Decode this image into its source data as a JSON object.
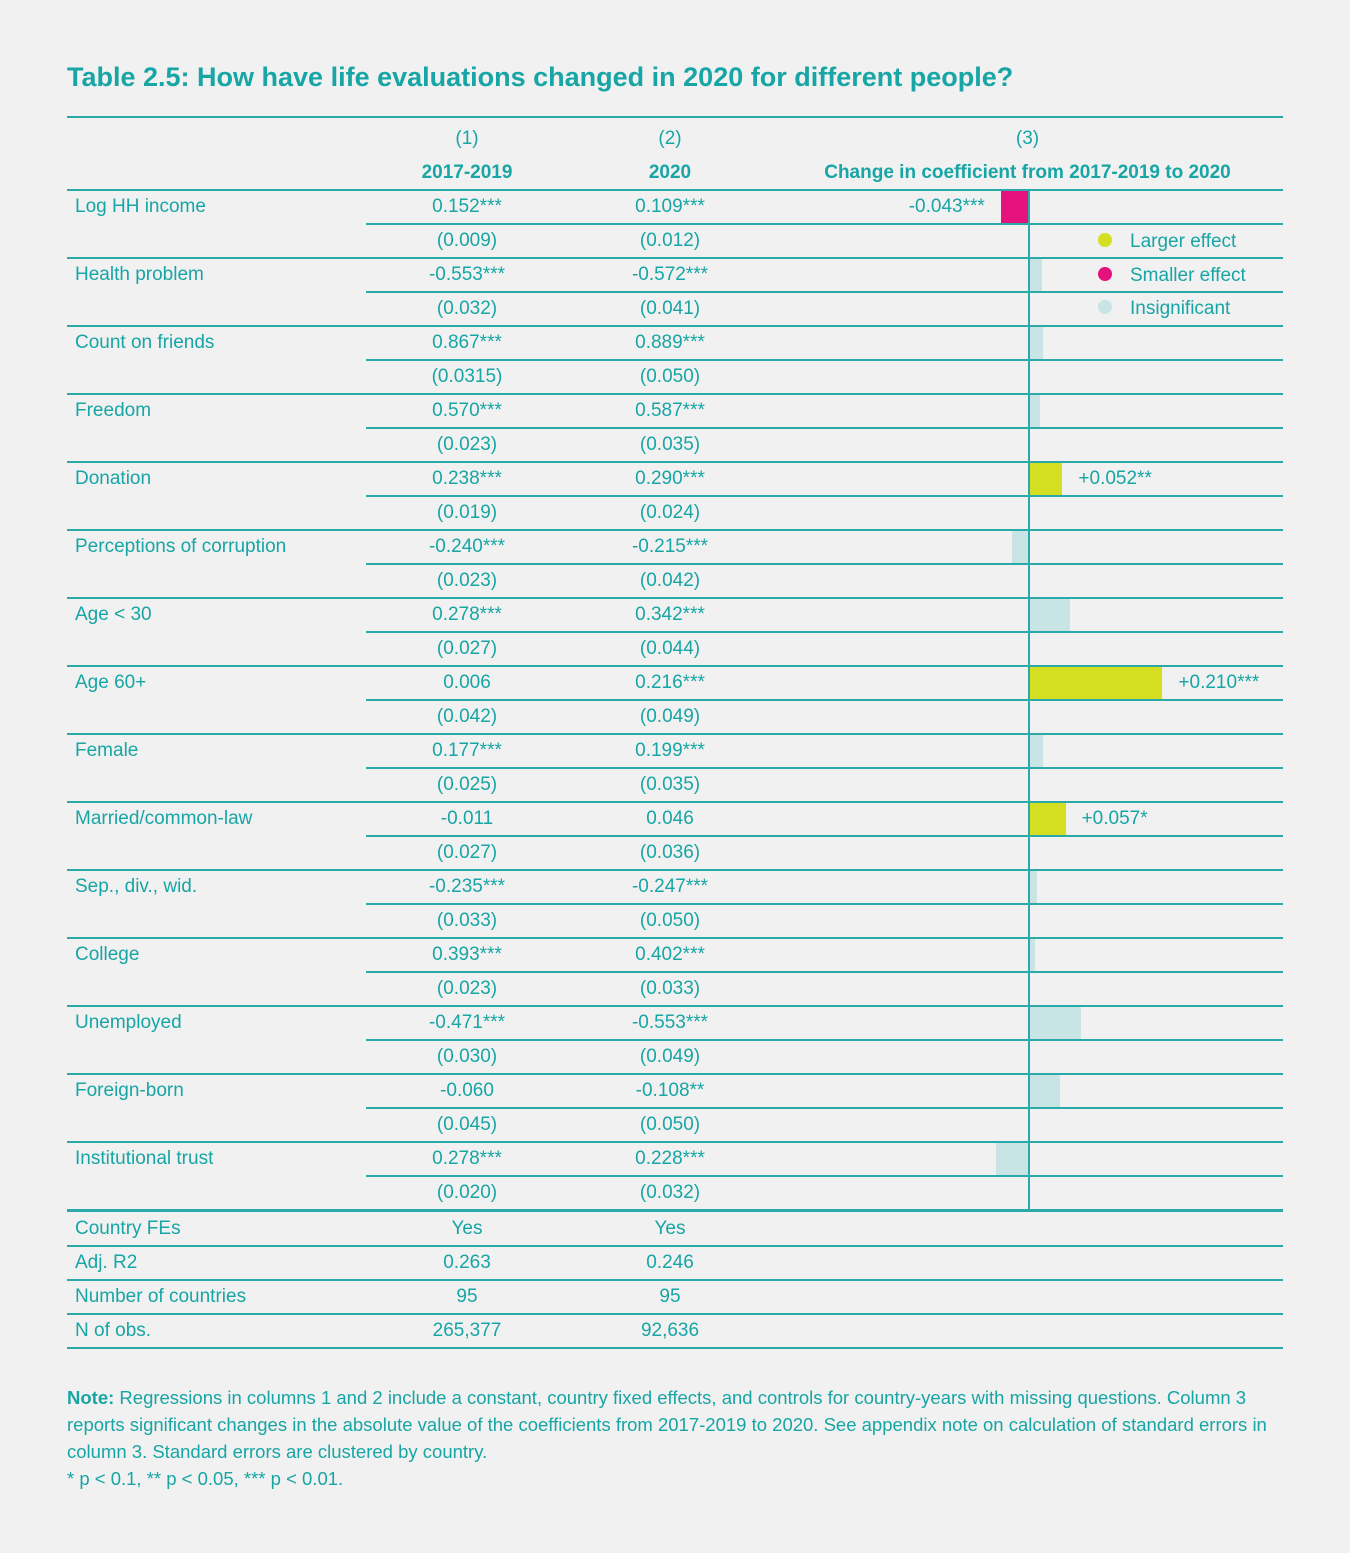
{
  "title": "Table 2.5: How have life evaluations changed in 2020 for different people?",
  "columns": [
    {
      "number": "(1)",
      "label": "2017-2019"
    },
    {
      "number": "(2)",
      "label": "2020"
    },
    {
      "number": "(3)",
      "label": "Change in coefficient from 2017-2019 to 2020"
    }
  ],
  "colors": {
    "accent": "#17a5a5",
    "larger": "#d4df22",
    "smaller": "#e5127d",
    "insignificant": "#c8e4e4"
  },
  "legend": [
    {
      "label": "Larger effect",
      "color": "#d4df22"
    },
    {
      "label": "Smaller effect",
      "color": "#e5127d"
    },
    {
      "label": "Insignificant",
      "color": "#c8e4e4"
    }
  ],
  "rows": [
    {
      "label": "Log HH income",
      "c1": "0.152***",
      "se1": "(0.009)",
      "c2": "0.109***",
      "se2": "(0.012)"
    },
    {
      "label": "Health problem",
      "c1": "-0.553***",
      "se1": "(0.032)",
      "c2": "-0.572***",
      "se2": "(0.041)"
    },
    {
      "label": "Count on friends",
      "c1": "0.867***",
      "se1": "(0.0315)",
      "c2": "0.889***",
      "se2": "(0.050)"
    },
    {
      "label": "Freedom",
      "c1": "0.570***",
      "se1": "(0.023)",
      "c2": "0.587***",
      "se2": "(0.035)"
    },
    {
      "label": "Donation",
      "c1": "0.238***",
      "se1": "(0.019)",
      "c2": "0.290***",
      "se2": "(0.024)"
    },
    {
      "label": "Perceptions of corruption",
      "c1": "-0.240***",
      "se1": "(0.023)",
      "c2": "-0.215***",
      "se2": "(0.042)"
    },
    {
      "label": "Age < 30",
      "c1": "0.278***",
      "se1": "(0.027)",
      "c2": "0.342***",
      "se2": "(0.044)"
    },
    {
      "label": "Age 60+",
      "c1": "0.006",
      "se1": "(0.042)",
      "c2": "0.216***",
      "se2": "(0.049)"
    },
    {
      "label": "Female",
      "c1": "0.177***",
      "se1": "(0.025)",
      "c2": "0.199***",
      "se2": "(0.035)"
    },
    {
      "label": "Married/common-law",
      "c1": "-0.011",
      "se1": "(0.027)",
      "c2": "0.046",
      "se2": "(0.036)"
    },
    {
      "label": "Sep., div., wid.",
      "c1": "-0.235***",
      "se1": "(0.033)",
      "c2": "-0.247***",
      "se2": "(0.050)"
    },
    {
      "label": "College",
      "c1": "0.393***",
      "se1": "(0.023)",
      "c2": "0.402***",
      "se2": "(0.033)"
    },
    {
      "label": "Unemployed",
      "c1": "-0.471***",
      "se1": "(0.030)",
      "c2": "-0.553***",
      "se2": "(0.049)"
    },
    {
      "label": "Foreign-born",
      "c1": "-0.060",
      "se1": "(0.045)",
      "c2": "-0.108**",
      "se2": "(0.050)"
    },
    {
      "label": "Institutional trust",
      "c1": "0.278***",
      "se1": "(0.020)",
      "c2": "0.228***",
      "se2": "(0.032)"
    }
  ],
  "footer_rows": [
    {
      "label": "Country FEs",
      "c1": "Yes",
      "c2": "Yes"
    },
    {
      "label": "Adj. R2",
      "c1": "0.263",
      "c2": "0.246"
    },
    {
      "label": "Number of countries",
      "c1": "95",
      "c2": "95"
    },
    {
      "label": "N of obs.",
      "c1": "265,377",
      "c2": "92,636"
    }
  ],
  "chart_data": {
    "type": "bar",
    "orientation": "horizontal",
    "title": "Change in coefficient from 2017-2019 to 2020",
    "categories": [
      "Log HH income",
      "Health problem",
      "Count on friends",
      "Freedom",
      "Donation",
      "Perceptions of corruption",
      "Age < 30",
      "Age 60+",
      "Female",
      "Married/common-law",
      "Sep., div., wid.",
      "College",
      "Unemployed",
      "Foreign-born",
      "Institutional trust"
    ],
    "values": [
      -0.043,
      0.019,
      0.022,
      0.017,
      0.052,
      -0.025,
      0.064,
      0.21,
      0.022,
      0.057,
      0.012,
      0.009,
      0.082,
      0.048,
      -0.05
    ],
    "status": [
      "smaller",
      "insignificant",
      "insignificant",
      "insignificant",
      "larger",
      "insignificant",
      "insignificant",
      "larger",
      "insignificant",
      "larger",
      "insignificant",
      "insignificant",
      "insignificant",
      "insignificant",
      "insignificant"
    ],
    "data_labels": [
      "-0.043***",
      "",
      "",
      "",
      "+0.052**",
      "",
      "",
      "+0.210***",
      "",
      "+0.057*",
      "",
      "",
      "",
      "",
      ""
    ],
    "legend_position": "top-right",
    "grid": false
  },
  "note": {
    "label": "Note:",
    "text": " Regressions in columns 1 and 2 include a constant, country fixed effects, and controls for country-years with missing questions. Column 3 reports significant changes in the absolute value of the coefficients from 2017-2019 to 2020. See appendix note on calculation of standard errors in column 3. Standard errors are clustered by country.",
    "significance": "* p < 0.1, ** p < 0.05, *** p < 0.01."
  }
}
